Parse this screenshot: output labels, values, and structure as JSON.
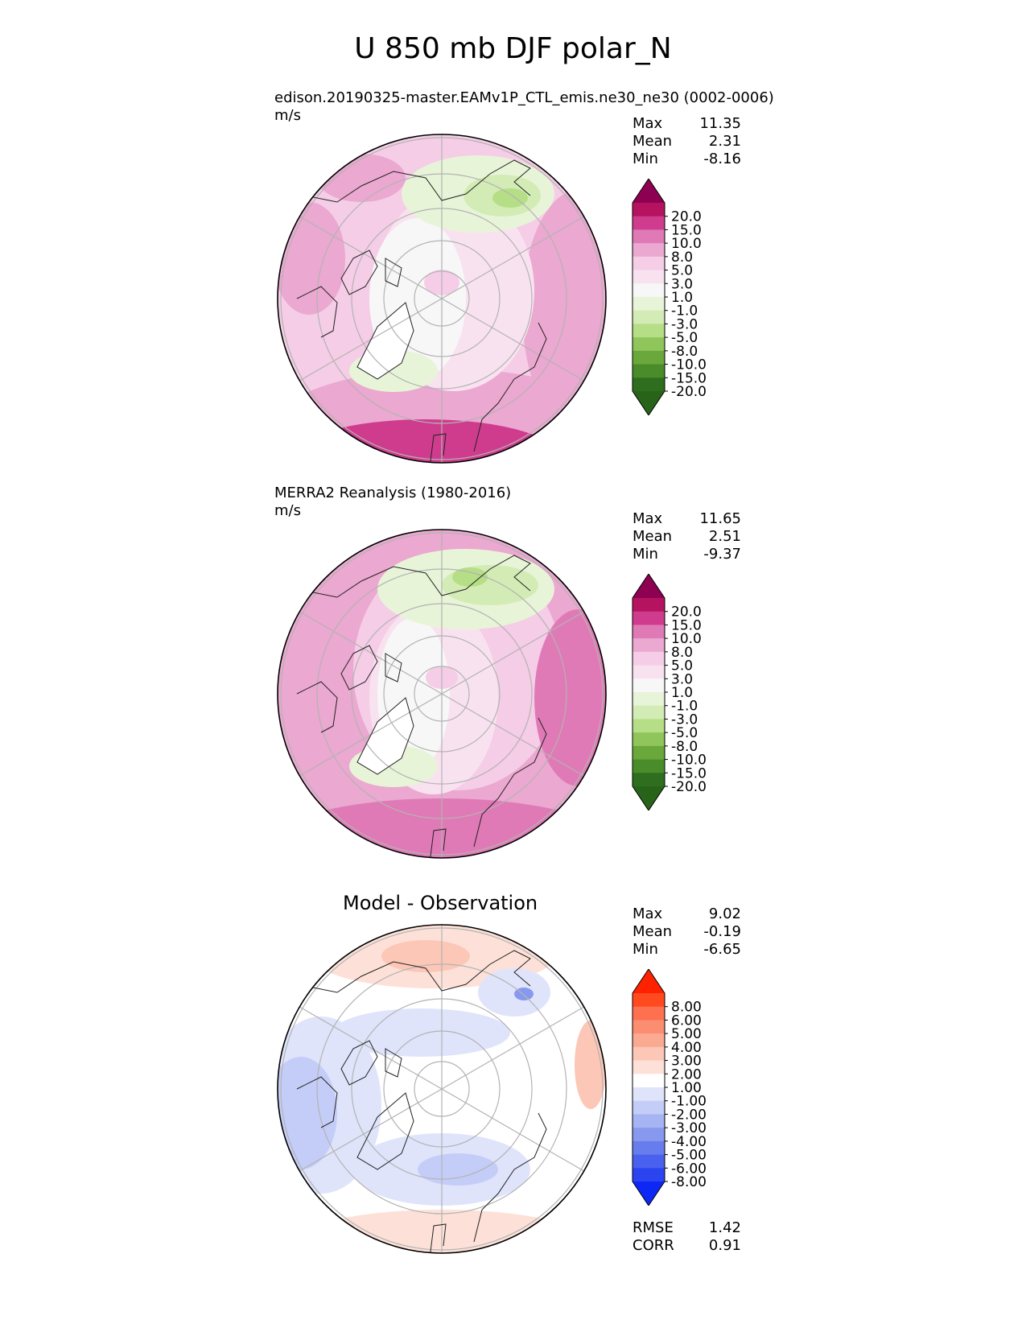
{
  "title": "U 850 mb DJF polar_N",
  "panels": [
    {
      "id": "model",
      "subtitle": "edison.20190325-master.EAMv1P_CTL_emis.ne30_ne30 (0002-0006)",
      "units": "m/s",
      "stats": [
        {
          "label": "Max",
          "value": "11.35"
        },
        {
          "label": "Mean",
          "value": "2.31"
        },
        {
          "label": "Min",
          "value": "-8.16"
        }
      ]
    },
    {
      "id": "obs",
      "subtitle": "MERRA2 Reanalysis (1980-2016)",
      "units": "m/s",
      "stats": [
        {
          "label": "Max",
          "value": "11.65"
        },
        {
          "label": "Mean",
          "value": "2.51"
        },
        {
          "label": "Min",
          "value": "-9.37"
        }
      ]
    },
    {
      "id": "diff",
      "title": "Model - Observation",
      "stats": [
        {
          "label": "Max",
          "value": "9.02"
        },
        {
          "label": "Mean",
          "value": "-0.19"
        },
        {
          "label": "Min",
          "value": "-6.65"
        }
      ],
      "metrics": [
        {
          "label": "RMSE",
          "value": "1.42"
        },
        {
          "label": "CORR",
          "value": "0.91"
        }
      ]
    }
  ],
  "chart_data": [
    {
      "type": "heatmap",
      "projection": "north polar stereographic",
      "title": "edison.20190325-master.EAMv1P_CTL_emis.ne30_ne30 (0002-0006)",
      "units": "m/s",
      "colorbar": {
        "ticks": [
          "20.0",
          "15.0",
          "10.0",
          "8.0",
          "5.0",
          "3.0",
          "1.0",
          "-1.0",
          "-3.0",
          "-5.0",
          "-8.0",
          "-10.0",
          "-15.0",
          "-20.0"
        ],
        "colors": [
          "#8e0152",
          "#b5135f",
          "#cf3c8e",
          "#e07ab6",
          "#eba8d0",
          "#f5cde6",
          "#f9e2f0",
          "#f7f7f7",
          "#e8f4d8",
          "#d3ecb5",
          "#b5de86",
          "#8fc55a",
          "#6aa83b",
          "#4a8c2a",
          "#2f6e1e",
          "#276419"
        ]
      },
      "stats": {
        "max": 11.35,
        "mean": 2.31,
        "min": -8.16
      }
    },
    {
      "type": "heatmap",
      "projection": "north polar stereographic",
      "title": "MERRA2 Reanalysis (1980-2016)",
      "units": "m/s",
      "colorbar": {
        "ticks": [
          "20.0",
          "15.0",
          "10.0",
          "8.0",
          "5.0",
          "3.0",
          "1.0",
          "-1.0",
          "-3.0",
          "-5.0",
          "-8.0",
          "-10.0",
          "-15.0",
          "-20.0"
        ],
        "colors": [
          "#8e0152",
          "#b5135f",
          "#cf3c8e",
          "#e07ab6",
          "#eba8d0",
          "#f5cde6",
          "#f9e2f0",
          "#f7f7f7",
          "#e8f4d8",
          "#d3ecb5",
          "#b5de86",
          "#8fc55a",
          "#6aa83b",
          "#4a8c2a",
          "#2f6e1e",
          "#276419"
        ]
      },
      "stats": {
        "max": 11.65,
        "mean": 2.51,
        "min": -9.37
      }
    },
    {
      "type": "heatmap",
      "projection": "north polar stereographic",
      "title": "Model - Observation",
      "colorbar": {
        "ticks": [
          "8.00",
          "6.00",
          "5.00",
          "4.00",
          "3.00",
          "2.00",
          "1.00",
          "-1.00",
          "-2.00",
          "-3.00",
          "-4.00",
          "-5.00",
          "-6.00",
          "-8.00"
        ],
        "colors": [
          "#ff2200",
          "#ff4a20",
          "#fd7050",
          "#fb8e70",
          "#fbaa92",
          "#fcc7b6",
          "#fde1d8",
          "#ffffff",
          "#dfe4fb",
          "#c4cdf7",
          "#a6b4f3",
          "#8799ef",
          "#687ded",
          "#4a60ee",
          "#2c44f0",
          "#0d28f5"
        ]
      },
      "stats": {
        "max": 9.02,
        "mean": -0.19,
        "min": -6.65
      },
      "rmse": 1.42,
      "corr": 0.91
    }
  ]
}
